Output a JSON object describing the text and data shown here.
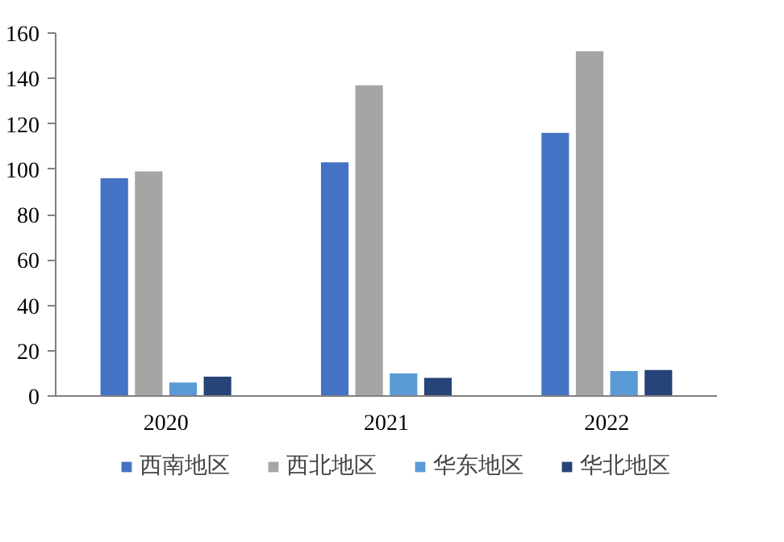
{
  "chart_data": {
    "type": "bar",
    "categories": [
      "2020",
      "2021",
      "2022"
    ],
    "series": [
      {
        "name": "西南地区",
        "color": "#4472c4",
        "values": [
          96,
          103,
          116
        ]
      },
      {
        "name": "西北地区",
        "color": "#a5a5a5",
        "values": [
          99,
          137,
          152
        ]
      },
      {
        "name": "华东地区",
        "color": "#5b9bd5",
        "values": [
          6,
          10,
          11
        ]
      },
      {
        "name": "华北地区",
        "color": "#264478",
        "values": [
          8.5,
          8,
          11.5
        ]
      }
    ],
    "ylim": [
      0,
      160
    ],
    "yticks": [
      0,
      20,
      40,
      60,
      80,
      100,
      120,
      140,
      160
    ],
    "grid": false,
    "legend": "bottom"
  }
}
